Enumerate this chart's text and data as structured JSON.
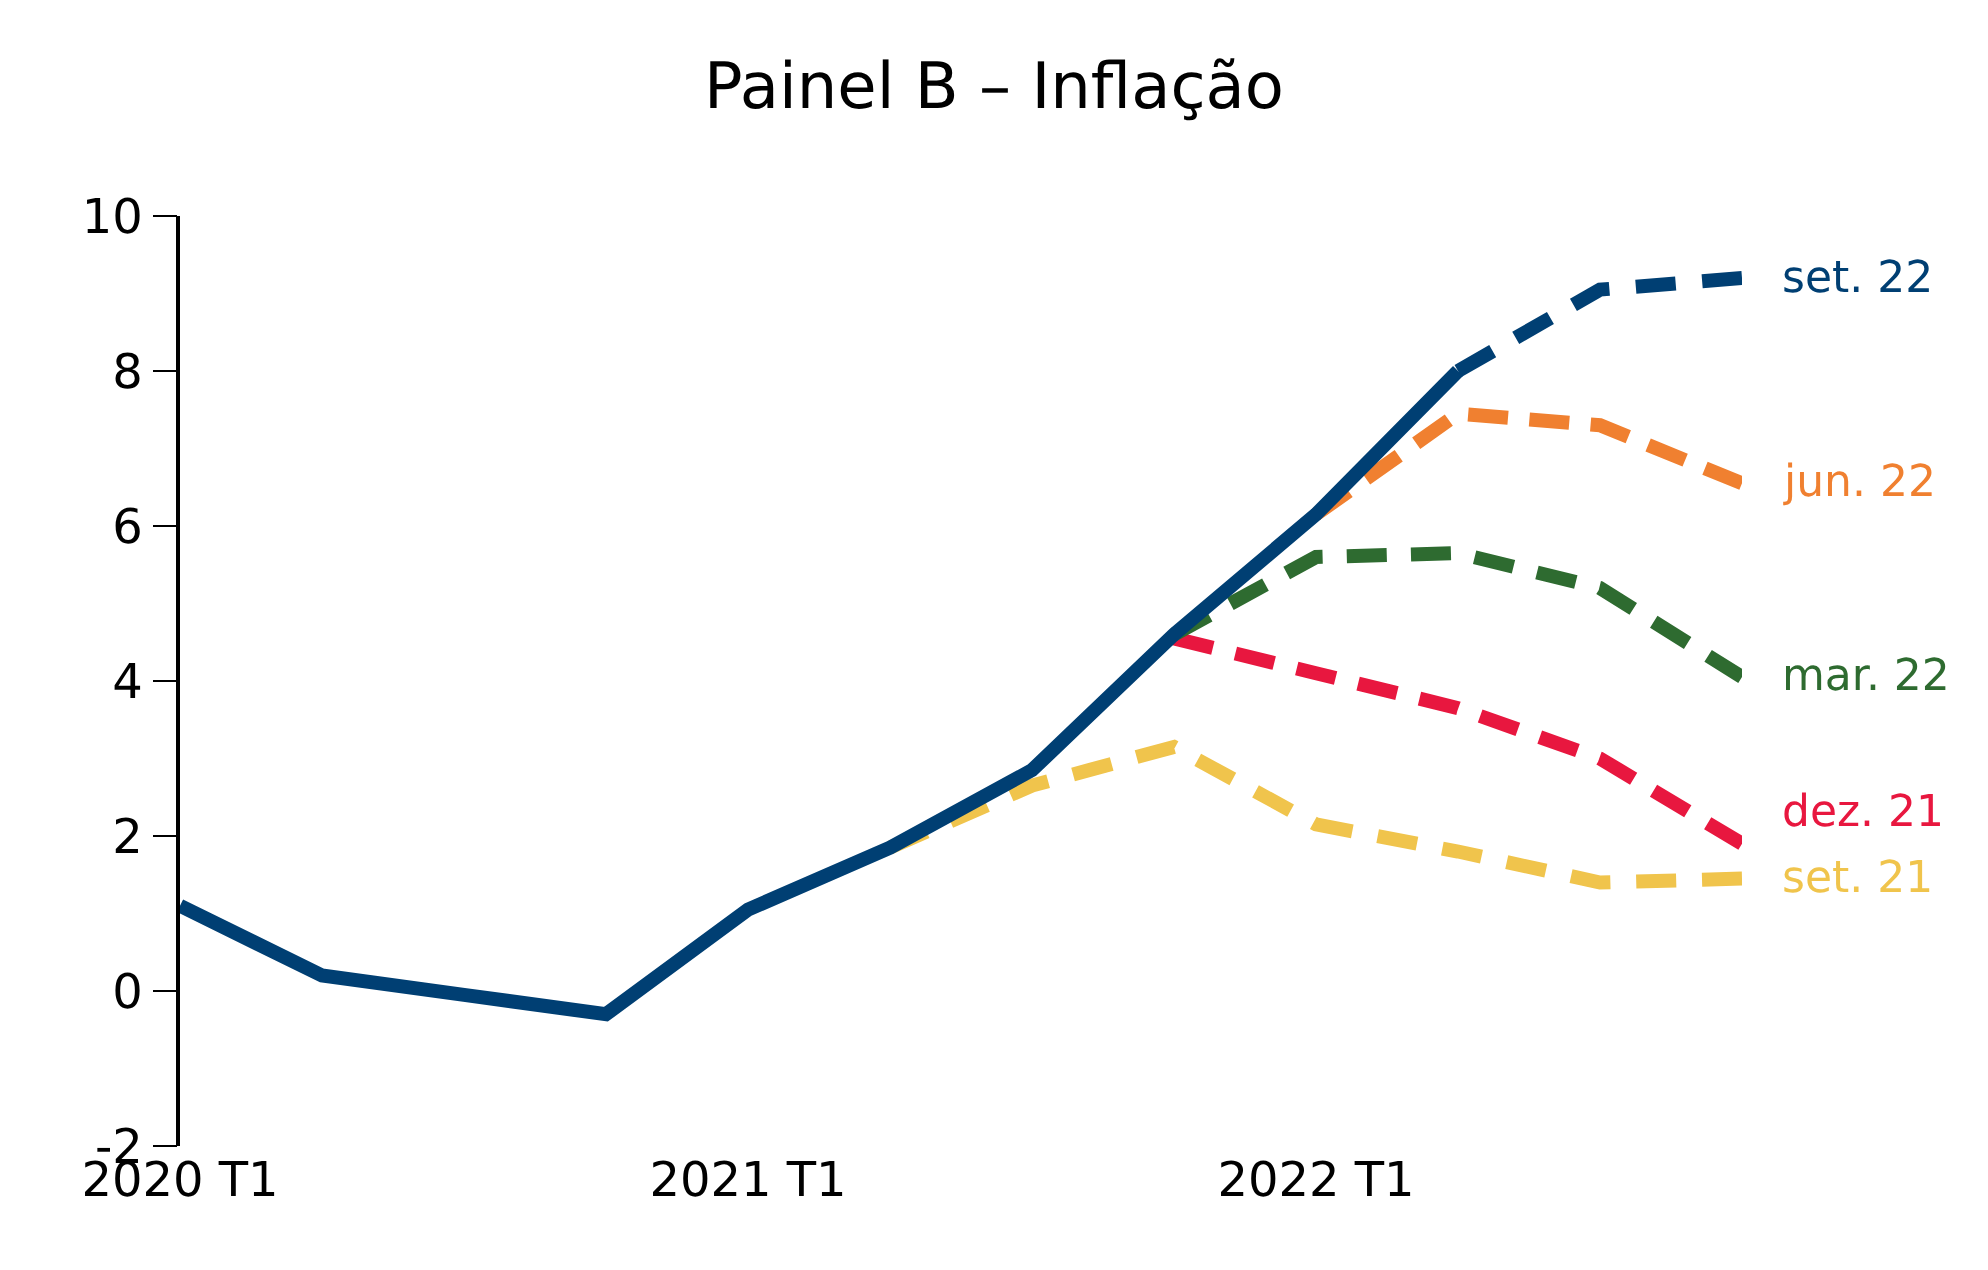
{
  "chart_data": {
    "type": "line",
    "title": "Painel B – Inflação",
    "categories": [
      "2020 T1",
      null,
      null,
      null,
      "2021 T1",
      null,
      null,
      null,
      "2022 T1",
      null,
      null,
      null
    ],
    "series": [
      {
        "name": "set. 21",
        "color": "#f0c44c",
        "line_style": "dashed",
        "values": [
          null,
          null,
          null,
          null,
          null,
          1.85,
          2.65,
          3.15,
          2.15,
          1.8,
          1.4,
          1.45
        ]
      },
      {
        "name": "dez. 21",
        "color": "#e8173f",
        "line_style": "dashed",
        "values": [
          null,
          null,
          null,
          null,
          null,
          null,
          null,
          4.55,
          4.1,
          3.65,
          3.0,
          1.9
        ]
      },
      {
        "name": "mar. 22",
        "color": "#2e6b30",
        "line_style": "dashed",
        "values": [
          null,
          null,
          null,
          null,
          null,
          null,
          null,
          4.6,
          5.6,
          5.65,
          5.2,
          4.05
        ]
      },
      {
        "name": "jun. 22",
        "color": "#f08030",
        "line_style": "dashed",
        "values": [
          null,
          null,
          null,
          null,
          null,
          null,
          null,
          null,
          6.15,
          7.45,
          7.3,
          6.55
        ]
      },
      {
        "color": "#003f73",
        "line_style": "solid",
        "values": [
          1.1,
          0.2,
          -0.05,
          -0.3,
          1.05,
          1.85,
          2.85,
          4.6,
          6.15,
          8.0,
          null,
          null
        ]
      },
      {
        "name": "set. 22",
        "color": "#003f73",
        "line_style": "dashed",
        "values": [
          null,
          null,
          null,
          null,
          null,
          null,
          null,
          null,
          null,
          8.0,
          9.05,
          9.2
        ]
      }
    ],
    "ylim": [
      -2,
      10
    ],
    "yticks": [
      -2,
      0,
      2,
      4,
      6,
      8,
      10
    ],
    "legend": false,
    "marker": "none"
  }
}
